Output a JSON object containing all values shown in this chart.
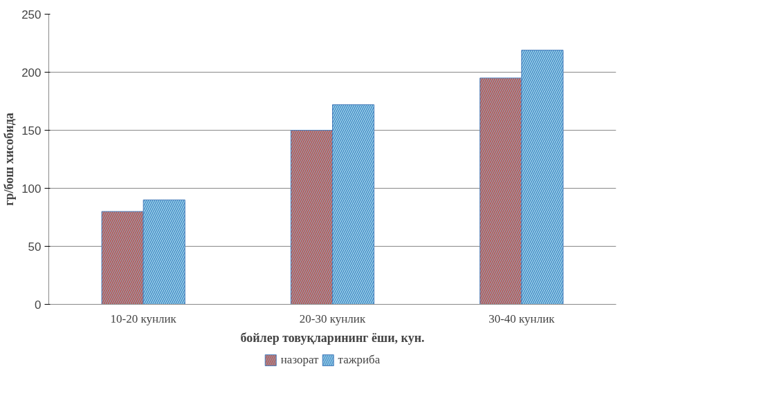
{
  "chart_data": {
    "type": "bar",
    "xlabel": "бойлер товуқларининг ёши, кун.",
    "ylabel": "гр/бош хисобида",
    "categories": [
      "10-20 кунлик",
      "20-30 кунлик",
      "30-40 кунлик"
    ],
    "series": [
      {
        "name": "назорат",
        "color": "#c0504d",
        "values": [
          80,
          150,
          195
        ]
      },
      {
        "name": "тажриба",
        "color": "#9bd3ea",
        "values": [
          90,
          172,
          219
        ]
      }
    ],
    "ylim": [
      0,
      250
    ],
    "yticks": [
      0,
      50,
      100,
      150,
      200,
      250
    ],
    "grid": "y",
    "legend": "bottom"
  }
}
